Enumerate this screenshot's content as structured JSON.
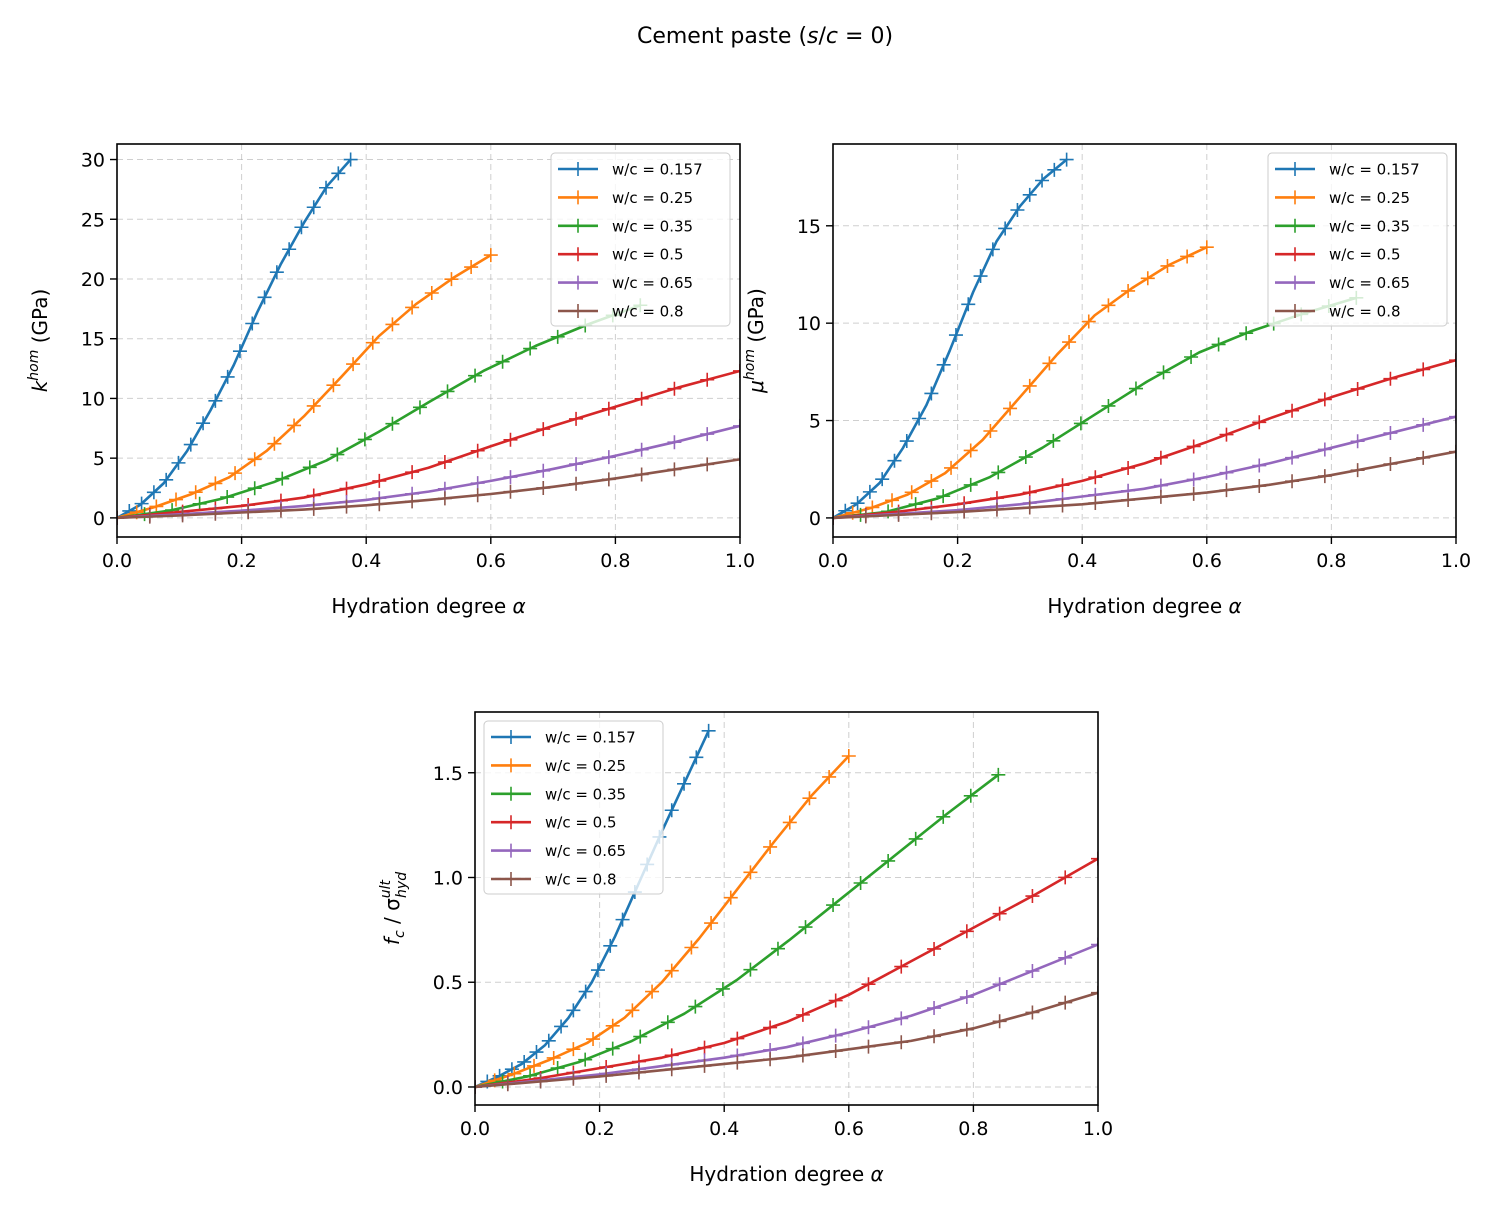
{
  "figure_title": {
    "prefix": "Cement paste (",
    "var1": "s",
    "slash": "/",
    "var2": "c",
    "suffix": " = 0)"
  },
  "colors": [
    "#1f77b4",
    "#ff7f0e",
    "#2ca02c",
    "#d62728",
    "#9467bd",
    "#8c564b"
  ],
  "chart_data": [
    {
      "type": "line",
      "xlabel": "Hydration degree α",
      "ylabel": {
        "base": "k",
        "sup": "hom",
        "unit": " (GPa)"
      },
      "xlim": [
        0,
        1
      ],
      "ylim": [
        -1.6,
        31.3
      ],
      "xticks": [
        "0.0",
        "0.2",
        "0.4",
        "0.6",
        "0.8",
        "1.0"
      ],
      "yticks": [
        "0",
        "5",
        "10",
        "15",
        "20",
        "25",
        "30"
      ],
      "grid": true,
      "legend": "top-right",
      "series": [
        {
          "name": "w/c = 0.157",
          "xmax": 0.375,
          "values": [
            0,
            1.1,
            2.9,
            5.6,
            9.0,
            12.8,
            17.2,
            21.2,
            24.7,
            27.8,
            30.0
          ]
        },
        {
          "name": "w/c = 0.25",
          "xmax": 0.6,
          "values": [
            0,
            0.9,
            2.0,
            3.4,
            5.6,
            8.5,
            11.8,
            15.2,
            17.9,
            20.1,
            22.0
          ]
        },
        {
          "name": "w/c = 0.35",
          "xmax": 0.84,
          "values": [
            0,
            0.6,
            1.6,
            3.0,
            4.8,
            7.2,
            9.8,
            12.3,
            14.4,
            16.2,
            17.8
          ]
        },
        {
          "name": "w/c = 0.5",
          "xmax": 1.0,
          "values": [
            0,
            0.5,
            1.0,
            1.7,
            2.8,
            4.2,
            6.0,
            7.7,
            9.3,
            10.9,
            12.3
          ]
        },
        {
          "name": "w/c = 0.65",
          "xmax": 1.0,
          "values": [
            0,
            0.3,
            0.6,
            1.0,
            1.5,
            2.2,
            3.1,
            4.1,
            5.2,
            6.4,
            7.7
          ]
        },
        {
          "name": "w/c = 0.8",
          "xmax": 1.0,
          "values": [
            0,
            0.2,
            0.45,
            0.7,
            1.05,
            1.5,
            2.0,
            2.6,
            3.3,
            4.1,
            4.9
          ]
        }
      ]
    },
    {
      "type": "line",
      "xlabel": "Hydration degree α",
      "ylabel": {
        "base": "μ",
        "sup": "hom",
        "unit": " (GPa)"
      },
      "xlim": [
        0,
        1
      ],
      "ylim": [
        -0.98,
        19.2
      ],
      "xticks": [
        "0.0",
        "0.2",
        "0.4",
        "0.6",
        "0.8",
        "1.0"
      ],
      "yticks": [
        "0",
        "5",
        "10",
        "15"
      ],
      "grid": true,
      "legend": "top-right",
      "series": [
        {
          "name": "w/c = 0.157",
          "xmax": 0.375,
          "values": [
            0,
            0.7,
            1.8,
            3.6,
            5.8,
            8.6,
            11.6,
            14.2,
            16.0,
            17.4,
            18.4
          ]
        },
        {
          "name": "w/c = 0.25",
          "xmax": 0.6,
          "values": [
            0,
            0.5,
            1.2,
            2.3,
            4.0,
            6.2,
            8.4,
            10.4,
            11.8,
            13.0,
            13.9
          ]
        },
        {
          "name": "w/c = 0.35",
          "xmax": 0.84,
          "values": [
            0,
            0.3,
            1.0,
            2.1,
            3.6,
            5.3,
            7.0,
            8.5,
            9.6,
            10.5,
            11.3
          ]
        },
        {
          "name": "w/c = 0.5",
          "xmax": 1.0,
          "values": [
            0,
            0.3,
            0.7,
            1.2,
            1.9,
            2.8,
            3.9,
            5.1,
            6.2,
            7.2,
            8.1
          ]
        },
        {
          "name": "w/c = 0.65",
          "xmax": 1.0,
          "values": [
            0,
            0.2,
            0.4,
            0.7,
            1.1,
            1.5,
            2.1,
            2.8,
            3.6,
            4.4,
            5.2
          ]
        },
        {
          "name": "w/c = 0.8",
          "xmax": 1.0,
          "values": [
            0,
            0.15,
            0.3,
            0.5,
            0.7,
            1.0,
            1.3,
            1.7,
            2.2,
            2.8,
            3.4
          ]
        }
      ]
    },
    {
      "type": "line",
      "xlabel": "Hydration degree α",
      "ylabel": {
        "base": "f",
        "sub1": "c",
        "mid": " / σ",
        "sup": "ult",
        "sub2": "hyd"
      },
      "xlim": [
        0,
        1
      ],
      "ylim": [
        -0.086,
        1.79
      ],
      "xticks": [
        "0.0",
        "0.2",
        "0.4",
        "0.6",
        "0.8",
        "1.0"
      ],
      "yticks": [
        "0.0",
        "0.5",
        "1.0",
        "1.5"
      ],
      "grid": true,
      "legend": "top-left",
      "series": [
        {
          "name": "w/c = 0.157",
          "xmax": 0.375,
          "values": [
            0,
            0.05,
            0.11,
            0.2,
            0.33,
            0.5,
            0.72,
            0.97,
            1.22,
            1.46,
            1.7
          ]
        },
        {
          "name": "w/c = 0.25",
          "xmax": 0.6,
          "values": [
            0,
            0.06,
            0.13,
            0.21,
            0.33,
            0.5,
            0.71,
            0.94,
            1.17,
            1.39,
            1.58
          ]
        },
        {
          "name": "w/c = 0.35",
          "xmax": 0.84,
          "values": [
            0,
            0.05,
            0.12,
            0.22,
            0.35,
            0.51,
            0.7,
            0.9,
            1.1,
            1.3,
            1.49
          ]
        },
        {
          "name": "w/c = 0.5",
          "xmax": 1.0,
          "values": [
            0,
            0.04,
            0.09,
            0.14,
            0.21,
            0.31,
            0.44,
            0.6,
            0.76,
            0.92,
            1.09
          ]
        },
        {
          "name": "w/c = 0.65",
          "xmax": 1.0,
          "values": [
            0,
            0.03,
            0.06,
            0.1,
            0.14,
            0.19,
            0.26,
            0.34,
            0.44,
            0.56,
            0.68
          ]
        },
        {
          "name": "w/c = 0.8",
          "xmax": 1.0,
          "values": [
            0,
            0.025,
            0.05,
            0.08,
            0.11,
            0.14,
            0.18,
            0.22,
            0.28,
            0.36,
            0.45
          ]
        }
      ]
    }
  ]
}
